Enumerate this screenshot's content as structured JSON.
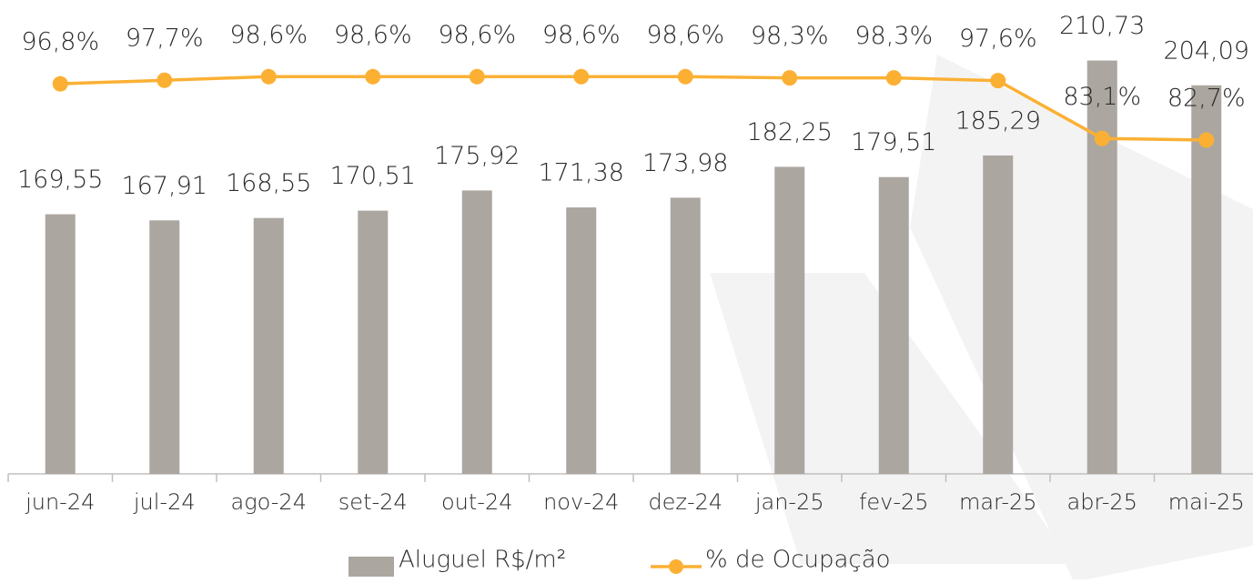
{
  "chart_data": {
    "type": "bar_line",
    "categories": [
      "jun-24",
      "jul-24",
      "ago-24",
      "set-24",
      "out-24",
      "nov-24",
      "dez-24",
      "jan-25",
      "fev-25",
      "mar-25",
      "abr-25",
      "mai-25"
    ],
    "series": [
      {
        "name": "Aluguel R$/m²",
        "type": "bar",
        "color": "#aca6a0",
        "values": [
          169.55,
          167.91,
          168.55,
          170.51,
          175.92,
          171.38,
          173.98,
          182.25,
          179.51,
          185.29,
          210.73,
          204.09
        ],
        "value_labels": [
          "169,55",
          "167,91",
          "168,55",
          "170,51",
          "175,92",
          "171,38",
          "173,98",
          "182,25",
          "179,51",
          "185,29",
          "210,73",
          "204,09"
        ]
      },
      {
        "name": "% de Ocupação",
        "type": "line",
        "axis": "y2",
        "color": "#fbb034",
        "values": [
          96.8,
          97.7,
          98.6,
          98.6,
          98.6,
          98.6,
          98.6,
          98.3,
          98.3,
          97.6,
          83.1,
          82.7
        ],
        "value_labels": [
          "96,8%",
          "97,7%",
          "98,6%",
          "98,6%",
          "98,6%",
          "98,6%",
          "98,6%",
          "98,3%",
          "98,3%",
          "97,6%",
          "83,1%",
          "82,7%"
        ]
      }
    ],
    "ylim": [
      100,
      225
    ],
    "y2lim": [
      -1,
      116
    ],
    "legend": "bottom"
  }
}
